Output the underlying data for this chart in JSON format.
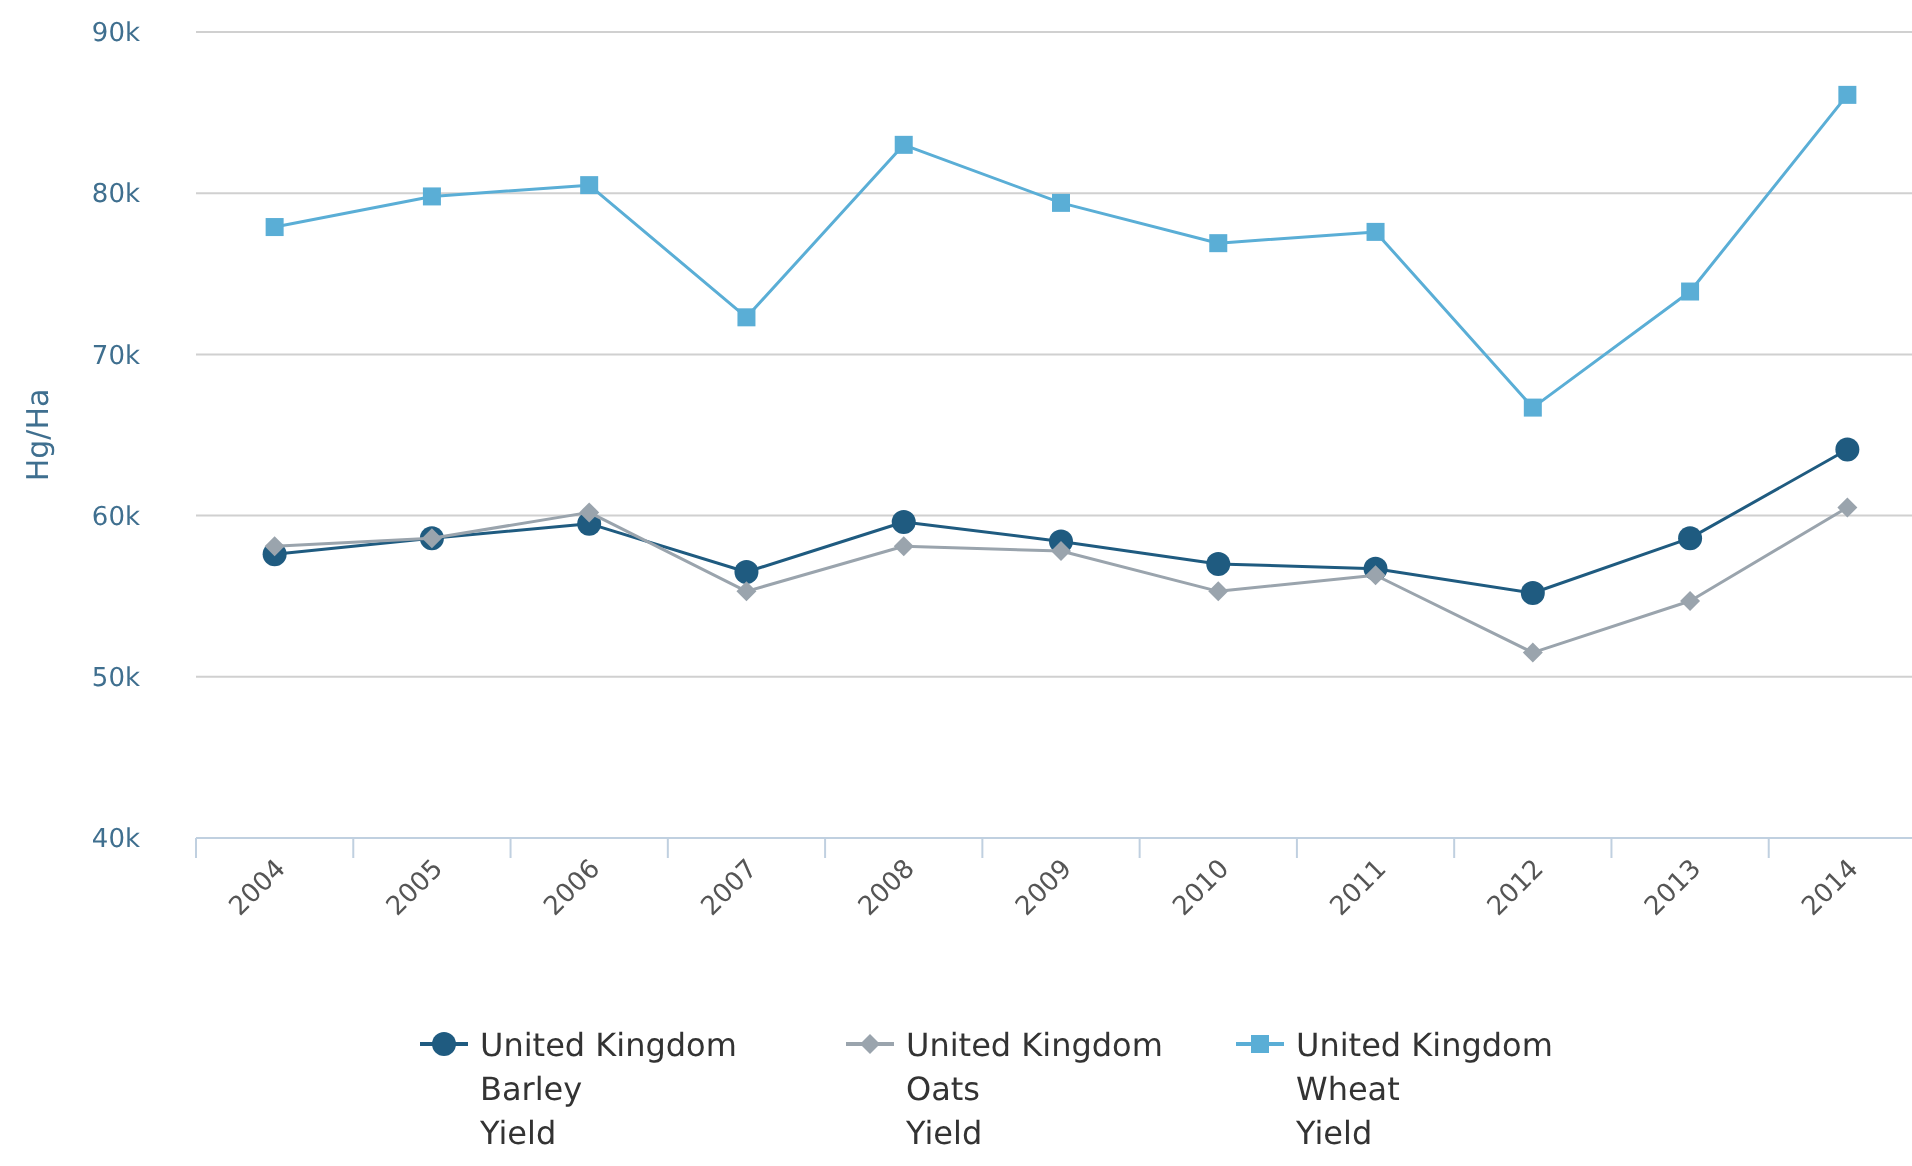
{
  "chart_data": {
    "type": "line",
    "ylabel": "Hg/Ha",
    "categories": [
      "2004",
      "2005",
      "2006",
      "2007",
      "2008",
      "2009",
      "2010",
      "2011",
      "2012",
      "2013",
      "2014"
    ],
    "ylim": [
      40000,
      90000
    ],
    "yticks": [
      {
        "value": 40000,
        "label": "40k"
      },
      {
        "value": 50000,
        "label": "50k"
      },
      {
        "value": 60000,
        "label": "60k"
      },
      {
        "value": 70000,
        "label": "70k"
      },
      {
        "value": 80000,
        "label": "80k"
      },
      {
        "value": 90000,
        "label": "90k"
      }
    ],
    "grid": "y",
    "legend": "bottom",
    "series": [
      {
        "name": "United Kingdom Barley Yield",
        "color": "#1f5b80",
        "marker": "circle",
        "values": [
          57600,
          58600,
          59500,
          56500,
          59600,
          58400,
          57000,
          56700,
          55200,
          58600,
          64100
        ]
      },
      {
        "name": "United Kingdom Oats Yield",
        "color": "#9aa4ad",
        "marker": "diamond",
        "values": [
          58100,
          58600,
          60200,
          55300,
          58100,
          57800,
          55300,
          56300,
          51500,
          54700,
          60500
        ]
      },
      {
        "name": "United Kingdom Wheat Yield",
        "color": "#5aaed6",
        "marker": "square",
        "values": [
          77900,
          79800,
          80500,
          72300,
          83000,
          79400,
          76900,
          77600,
          66700,
          73900,
          86100
        ]
      }
    ]
  }
}
